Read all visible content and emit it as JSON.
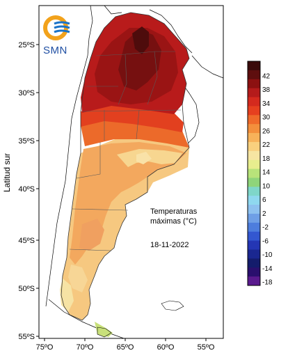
{
  "logo": {
    "text": "SMN",
    "colors": {
      "ring": "#f2a21b",
      "waves": "#1a73c8"
    }
  },
  "map_title_lines": [
    "Temperaturas",
    "máximas (°C)"
  ],
  "map_date": "18-11-2022",
  "axes": {
    "ylabel": "Latitud sur",
    "lat_ticks": [
      "25ºS",
      "30ºS",
      "35ºS",
      "40ºS",
      "45ºS",
      "50ºS",
      "55ºS"
    ],
    "lon_ticks": [
      "75ºO",
      "70ºO",
      "65ºO",
      "60ºO",
      "55ºO"
    ]
  },
  "colorbar": {
    "labels": [
      "42",
      "38",
      "34",
      "30",
      "26",
      "22",
      "18",
      "14",
      "10",
      "6",
      "2",
      "-2",
      "-6",
      "-10",
      "-14",
      "-18"
    ],
    "colors": [
      "#3a0b0b",
      "#5e0e0e",
      "#8c1111",
      "#b41b1b",
      "#d42a1e",
      "#e6401f",
      "#ef6a2a",
      "#f38f3c",
      "#f7b25a",
      "#f9d07e",
      "#f6e5a2",
      "#e8ee8e",
      "#b8e37a",
      "#8fd47a",
      "#7fd6c9",
      "#8fd8ef",
      "#8ec1ef",
      "#6f9fe6",
      "#4d7ddd",
      "#3357d0",
      "#2436b4",
      "#1a2790",
      "#141c6c",
      "#2a0f6e",
      "#5a1a8e"
    ]
  }
}
